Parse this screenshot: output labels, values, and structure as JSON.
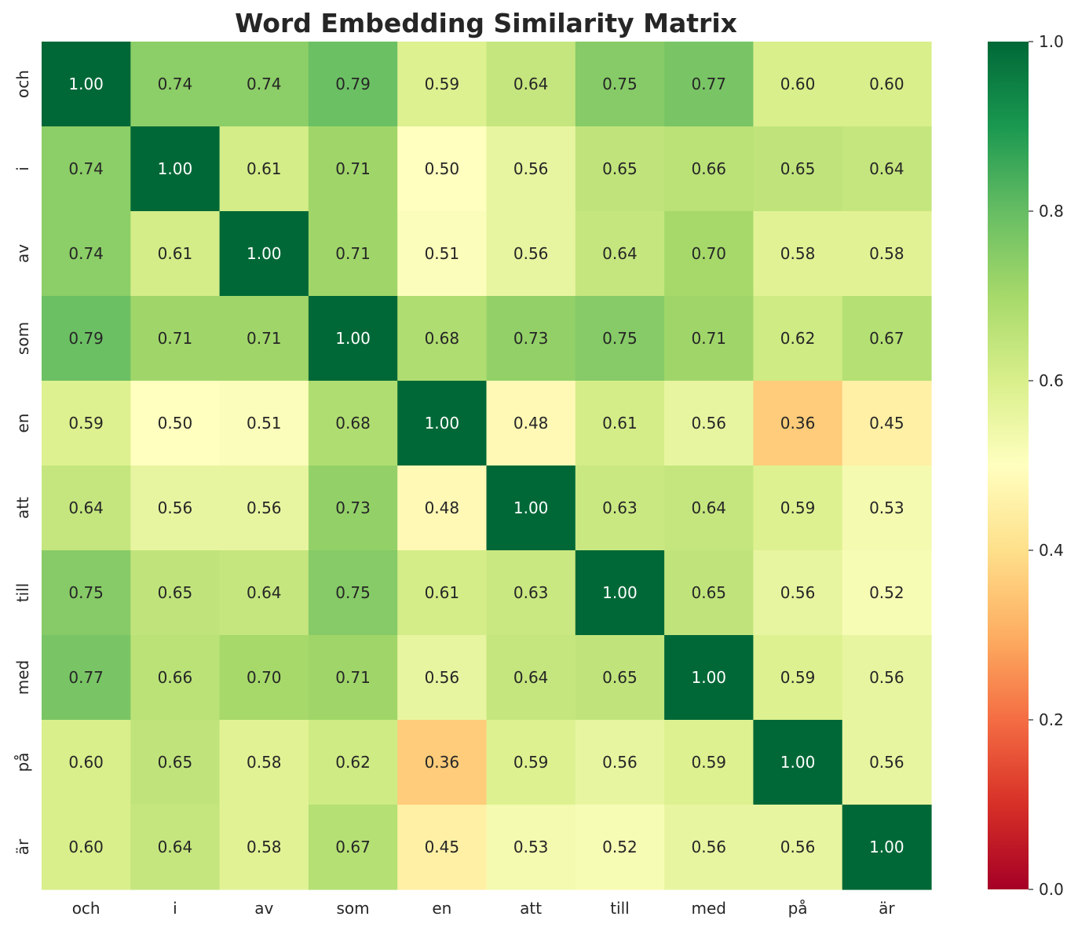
{
  "chart_data": {
    "type": "heatmap",
    "title": "Word Embedding Similarity Matrix",
    "xlabel": "",
    "ylabel": "",
    "x_categories": [
      "och",
      "i",
      "av",
      "som",
      "en",
      "att",
      "till",
      "med",
      "på",
      "är"
    ],
    "y_categories": [
      "och",
      "i",
      "av",
      "som",
      "en",
      "att",
      "till",
      "med",
      "på",
      "är"
    ],
    "values": [
      [
        1.0,
        0.74,
        0.74,
        0.79,
        0.59,
        0.64,
        0.75,
        0.77,
        0.6,
        0.6
      ],
      [
        0.74,
        1.0,
        0.61,
        0.71,
        0.5,
        0.56,
        0.65,
        0.66,
        0.65,
        0.64
      ],
      [
        0.74,
        0.61,
        1.0,
        0.71,
        0.51,
        0.56,
        0.64,
        0.7,
        0.58,
        0.58
      ],
      [
        0.79,
        0.71,
        0.71,
        1.0,
        0.68,
        0.73,
        0.75,
        0.71,
        0.62,
        0.67
      ],
      [
        0.59,
        0.5,
        0.51,
        0.68,
        1.0,
        0.48,
        0.61,
        0.56,
        0.36,
        0.45
      ],
      [
        0.64,
        0.56,
        0.56,
        0.73,
        0.48,
        1.0,
        0.63,
        0.64,
        0.59,
        0.53
      ],
      [
        0.75,
        0.65,
        0.64,
        0.75,
        0.61,
        0.63,
        1.0,
        0.65,
        0.56,
        0.52
      ],
      [
        0.77,
        0.66,
        0.7,
        0.71,
        0.56,
        0.64,
        0.65,
        1.0,
        0.59,
        0.56
      ],
      [
        0.6,
        0.65,
        0.58,
        0.62,
        0.36,
        0.59,
        0.56,
        0.59,
        1.0,
        0.56
      ],
      [
        0.6,
        0.64,
        0.58,
        0.67,
        0.45,
        0.53,
        0.52,
        0.56,
        0.56,
        1.0
      ]
    ],
    "value_format": "0.00",
    "colormap": "RdYlGn",
    "vmin": 0.0,
    "vmax": 1.0,
    "colorbar_ticks": [
      "0.0",
      "0.2",
      "0.4",
      "0.6",
      "0.8",
      "1.0"
    ],
    "grid": false,
    "legend": "colorbar-right"
  },
  "colors": {
    "colormap_stops": [
      "#a50026",
      "#d73027",
      "#f46d43",
      "#fdae61",
      "#fee08b",
      "#ffffbf",
      "#d9ef8b",
      "#a6d96a",
      "#66bd63",
      "#1a9850",
      "#006837"
    ],
    "text_dark": "#262626",
    "text_light": "#ffffff"
  }
}
